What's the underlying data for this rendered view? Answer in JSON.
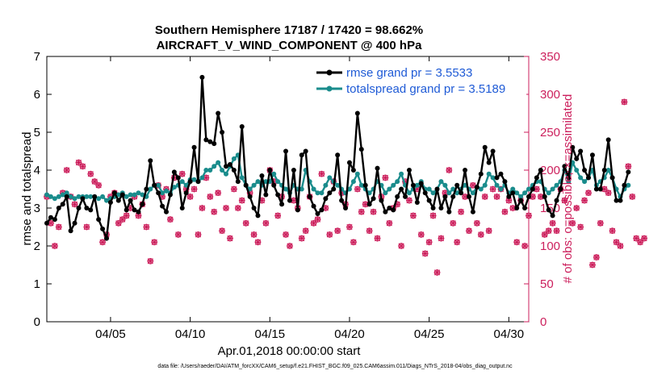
{
  "chart_data": {
    "type": "line",
    "title": "Southern Hemisphere 17187 / 17420 = 98.662%",
    "subtitle": "AIRCRAFT_V_WIND_COMPONENT @ 400 hPa",
    "xlabel": "Apr.01,2018 00:00:00 start",
    "ylabel_left": "rmse and totalspread",
    "ylabel_right": "# of obs: o=possible; ×=assimilated",
    "footnote": "data file: /Users/raeder/DAI/ATM_forcXX/CAM6_setup/f.e21.FHIST_BGC.f09_025.CAM6assim.011/Diags_NTrS_2018-04/obs_diag_output.nc",
    "xlim": [
      1.0,
      31.25
    ],
    "ylim_left": [
      0,
      7
    ],
    "ylim_right": [
      0,
      350
    ],
    "x_ticks": [
      {
        "x": 5,
        "label": "04/05"
      },
      {
        "x": 10,
        "label": "04/10"
      },
      {
        "x": 15,
        "label": "04/15"
      },
      {
        "x": 20,
        "label": "04/20"
      },
      {
        "x": 25,
        "label": "04/25"
      },
      {
        "x": 30,
        "label": "04/30"
      }
    ],
    "y_left_ticks": [
      "0",
      "1",
      "2",
      "3",
      "4",
      "5",
      "6",
      "7"
    ],
    "y_right_ticks": [
      "0",
      "50",
      "100",
      "150",
      "200",
      "250",
      "300",
      "350"
    ],
    "series": [
      {
        "name": "rmse grand pr = 3.5533",
        "color": "#000000",
        "x_start": 1.0,
        "x_step": 0.25,
        "values": [
          2.6,
          2.75,
          2.7,
          3.0,
          3.1,
          3.3,
          2.4,
          2.6,
          3.0,
          3.25,
          3.0,
          2.95,
          3.3,
          2.7,
          2.45,
          2.2,
          3.15,
          3.4,
          3.2,
          3.35,
          2.95,
          3.2,
          2.95,
          2.9,
          3.1,
          3.5,
          4.25,
          3.6,
          3.4,
          3.05,
          2.9,
          3.35,
          3.95,
          3.8,
          3.0,
          3.4,
          3.7,
          4.6,
          3.7,
          6.45,
          4.8,
          4.75,
          4.7,
          5.5,
          5.0,
          4.1,
          4.15,
          4.0,
          3.7,
          5.15,
          3.6,
          3.3,
          3.0,
          2.8,
          3.85,
          3.35,
          4.0,
          3.6,
          3.35,
          3.1,
          4.5,
          3.2,
          4.0,
          2.95,
          4.4,
          4.5,
          3.3,
          3.05,
          2.85,
          2.95,
          3.25,
          3.4,
          3.5,
          4.4,
          3.2,
          3.0,
          4.2,
          4.0,
          5.5,
          4.55,
          3.6,
          3.1,
          3.25,
          4.05,
          3.2,
          2.9,
          3.0,
          2.95,
          3.3,
          3.5,
          3.3,
          4.0,
          3.6,
          3.15,
          3.65,
          3.4,
          3.2,
          3.0,
          3.5,
          3.0,
          3.3,
          2.9,
          3.3,
          3.6,
          3.4,
          4.0,
          3.3,
          2.9,
          3.55,
          3.9,
          4.6,
          4.2,
          4.5,
          3.8,
          3.9,
          3.7,
          3.3,
          3.4,
          3.0,
          3.2,
          3.0,
          3.3,
          3.5,
          3.8,
          4.0,
          3.3,
          2.95,
          2.8,
          3.2,
          3.5,
          4.1,
          3.8,
          4.6,
          4.3,
          4.5,
          4.0,
          3.8,
          4.4,
          3.5,
          3.5,
          4.0,
          4.8,
          3.8,
          3.2,
          3.2,
          3.6,
          3.95
        ]
      },
      {
        "name": "totalspread grand pr = 3.5189",
        "color": "#1a8c8c",
        "x_start": 1.0,
        "x_step": 0.25,
        "values": [
          3.35,
          3.3,
          3.25,
          3.3,
          3.35,
          3.4,
          3.3,
          3.25,
          3.3,
          3.3,
          3.3,
          3.3,
          3.3,
          3.25,
          3.3,
          3.2,
          3.25,
          3.3,
          3.35,
          3.4,
          3.3,
          3.35,
          3.35,
          3.4,
          3.35,
          3.3,
          3.5,
          3.6,
          3.6,
          3.4,
          3.45,
          3.4,
          3.55,
          3.6,
          3.7,
          3.6,
          3.75,
          3.75,
          3.7,
          3.8,
          4.0,
          4.0,
          4.1,
          4.2,
          4.0,
          3.9,
          4.1,
          4.3,
          4.4,
          3.8,
          3.6,
          3.5,
          3.6,
          3.7,
          3.6,
          3.7,
          3.7,
          3.9,
          3.7,
          3.6,
          3.5,
          3.4,
          3.6,
          3.5,
          3.5,
          4.0,
          3.7,
          3.5,
          3.4,
          3.4,
          3.6,
          3.8,
          3.7,
          3.6,
          3.5,
          3.4,
          3.5,
          3.7,
          3.9,
          3.6,
          3.5,
          3.4,
          3.5,
          3.7,
          3.6,
          3.4,
          3.5,
          3.6,
          3.7,
          3.9,
          3.6,
          3.4,
          3.5,
          3.6,
          3.7,
          3.5,
          3.5,
          3.4,
          3.5,
          3.7,
          3.6,
          3.4,
          3.5,
          3.4,
          3.5,
          3.6,
          3.5,
          3.4,
          3.55,
          3.5,
          3.6,
          3.9,
          3.8,
          3.6,
          3.5,
          3.6,
          3.4,
          3.5,
          3.4,
          3.3,
          3.4,
          3.5,
          3.6,
          3.7,
          3.7,
          3.5,
          3.4,
          3.5,
          3.6,
          3.7,
          4.0,
          3.7,
          4.2,
          4.0,
          3.8,
          3.7,
          3.8,
          4.0,
          3.6,
          3.7,
          3.8,
          4.0,
          3.8,
          3.5,
          3.3,
          3.5,
          3.6
        ]
      },
      {
        "name": "possible",
        "color": "#cc1f5c",
        "x_start": 1.0,
        "x_step": 0.25,
        "values": [
          165,
          130,
          100,
          125,
          170,
          200,
          165,
          155,
          210,
          205,
          125,
          195,
          185,
          180,
          105,
          115,
          165,
          170,
          130,
          135,
          140,
          150,
          165,
          140,
          155,
          125,
          80,
          105,
          180,
          165,
          175,
          135,
          190,
          115,
          195,
          175,
          165,
          175,
          115,
          150,
          190,
          165,
          145,
          170,
          120,
          150,
          110,
          175,
          150,
          160,
          130,
          170,
          115,
          105,
          160,
          130,
          200,
          185,
          140,
          165,
          115,
          100,
          160,
          150,
          110,
          120,
          165,
          130,
          135,
          195,
          150,
          115,
          185,
          120,
          170,
          155,
          125,
          105,
          175,
          145,
          155,
          120,
          145,
          110,
          165,
          190,
          130,
          150,
          155,
          100,
          185,
          160,
          140,
          175,
          115,
          90,
          105,
          140,
          65,
          110,
          170,
          200,
          130,
          105,
          145,
          165,
          120,
          180,
          130,
          115,
          165,
          120,
          175,
          165,
          175,
          145,
          160,
          150,
          105,
          160,
          100,
          140,
          165,
          175,
          165,
          115,
          120,
          130,
          120,
          175,
          160,
          195,
          130,
          150,
          125,
          160,
          170,
          75,
          85,
          130,
          175,
          170,
          120,
          105,
          100,
          290,
          205,
          165,
          110,
          105,
          110
        ]
      },
      {
        "name": "assimilated",
        "color": "#cc1f5c",
        "x_start": 1.0,
        "x_step": 0.25,
        "values": [
          165,
          130,
          100,
          125,
          170,
          200,
          165,
          155,
          210,
          205,
          125,
          195,
          185,
          180,
          105,
          115,
          165,
          170,
          130,
          135,
          140,
          150,
          165,
          140,
          155,
          125,
          80,
          105,
          180,
          165,
          175,
          135,
          190,
          115,
          195,
          175,
          165,
          175,
          115,
          150,
          190,
          165,
          145,
          170,
          120,
          150,
          110,
          175,
          150,
          160,
          130,
          170,
          115,
          105,
          160,
          130,
          200,
          185,
          140,
          165,
          115,
          100,
          160,
          150,
          110,
          120,
          165,
          130,
          135,
          195,
          150,
          115,
          185,
          120,
          170,
          155,
          125,
          105,
          175,
          145,
          155,
          120,
          145,
          110,
          165,
          190,
          130,
          150,
          155,
          100,
          185,
          160,
          140,
          175,
          115,
          90,
          105,
          140,
          65,
          110,
          170,
          200,
          130,
          105,
          145,
          165,
          120,
          180,
          130,
          115,
          165,
          120,
          175,
          165,
          175,
          145,
          160,
          150,
          105,
          160,
          100,
          140,
          165,
          175,
          165,
          115,
          120,
          130,
          120,
          175,
          160,
          195,
          130,
          150,
          125,
          160,
          170,
          75,
          85,
          130,
          175,
          170,
          120,
          105,
          100,
          290,
          205,
          165,
          110,
          105,
          110
        ]
      }
    ]
  }
}
